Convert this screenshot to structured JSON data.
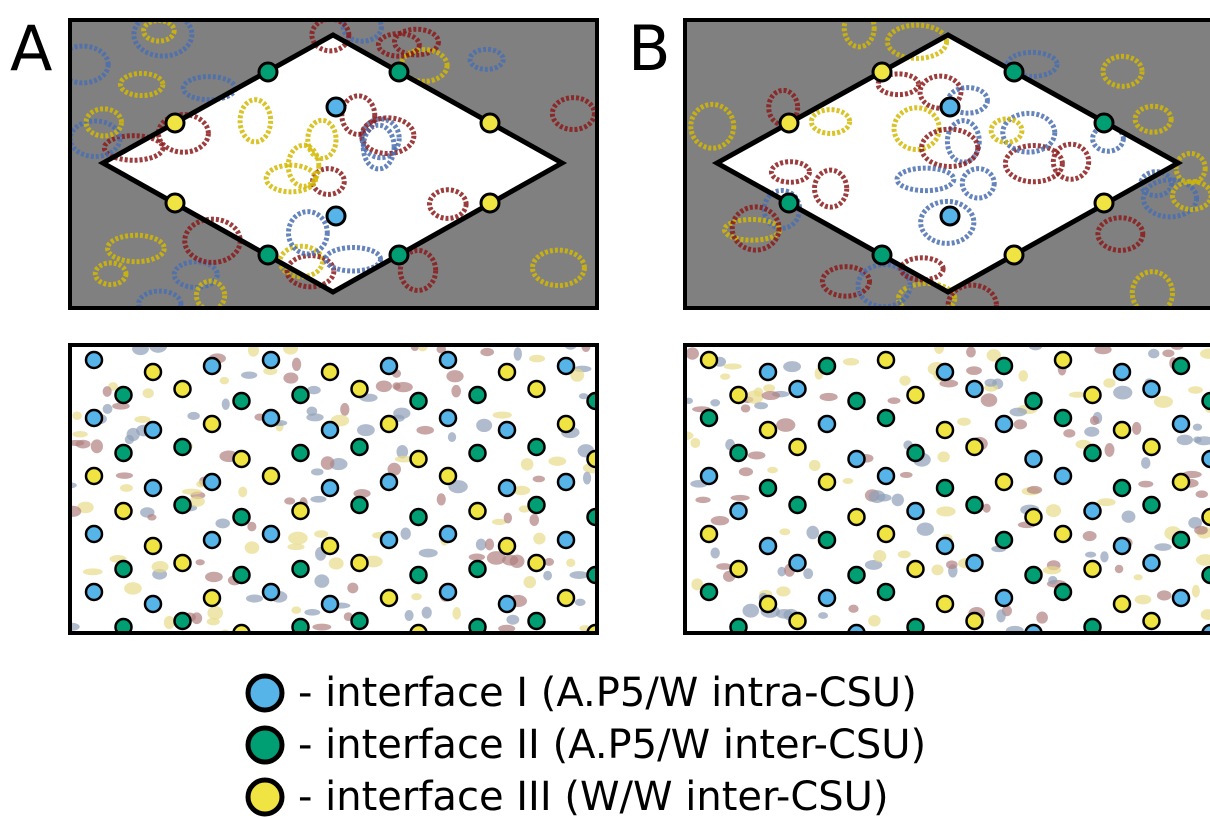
{
  "panels": [
    {
      "label": "A"
    },
    {
      "label": "B"
    }
  ],
  "legend": [
    {
      "text": "- interface I (A.P5/W intra-CSU)",
      "color": "#56b4e9"
    },
    {
      "text": "- interface II (A.P5/W inter-CSU)",
      "color": "#009e73"
    },
    {
      "text": "- interface III (W/W inter-CSU)",
      "color": "#f0e442"
    }
  ]
}
